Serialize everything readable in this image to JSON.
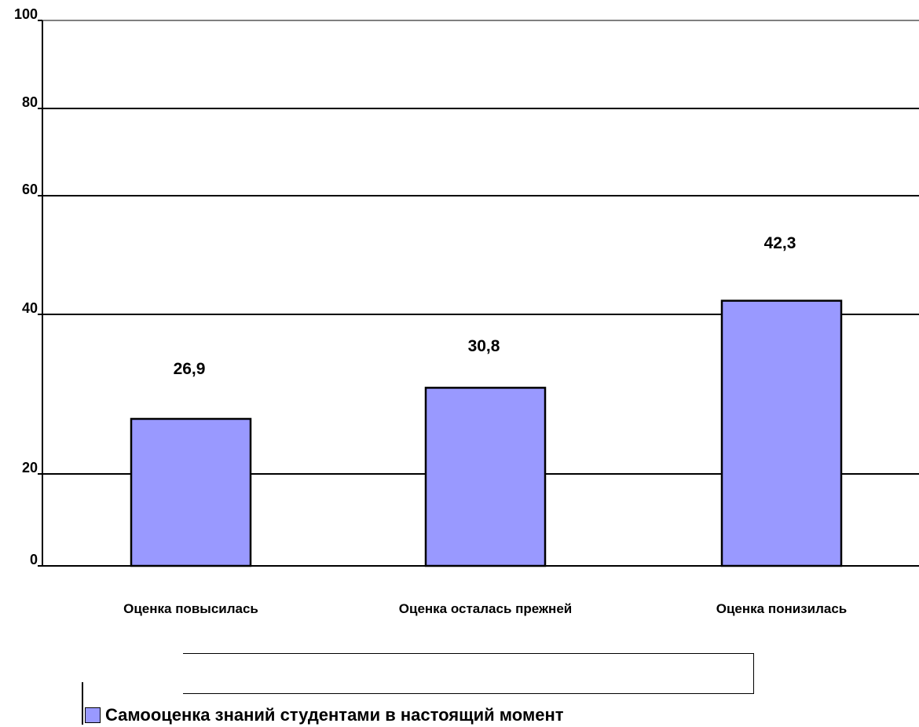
{
  "chart_data": {
    "type": "bar",
    "categories": [
      "Оценка повысилась",
      "Оценка осталась прежней",
      "Оценка понизилась"
    ],
    "series": [
      {
        "name": "Самооценка знаний студентами в настоящий момент",
        "values": [
          26.9,
          30.8,
          42.3
        ],
        "value_labels": [
          "26,9",
          "30,8",
          "42,3"
        ]
      }
    ],
    "y_ticks": [
      0,
      20,
      40,
      60,
      80,
      100
    ],
    "ylim": [
      0,
      100
    ],
    "grid": true,
    "legend_position": "bottom",
    "bar_color": "#9999ff"
  }
}
